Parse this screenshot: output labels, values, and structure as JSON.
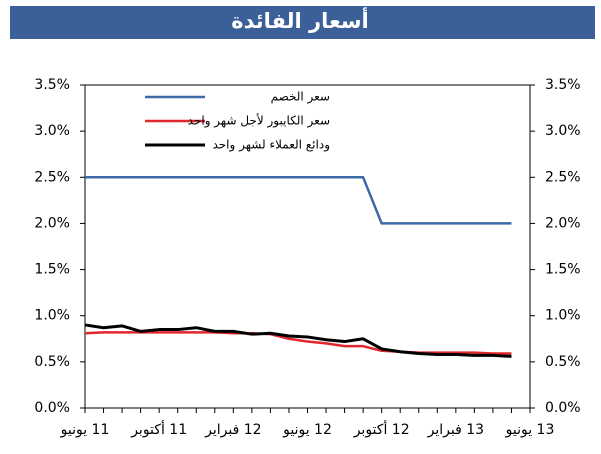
{
  "chart_data": {
    "type": "line",
    "title": "أسعار الفائدة",
    "categories": [
      "11 يونيو",
      null,
      null,
      null,
      "11 أكتوبر",
      null,
      null,
      null,
      "12 فبراير",
      null,
      null,
      null,
      "12 يونيو",
      null,
      null,
      null,
      "12 أكتوبر",
      null,
      null,
      null,
      "13 فبراير",
      null,
      null,
      null,
      "13 يونيو"
    ],
    "series": [
      {
        "name": "سعر الخصم",
        "color": "#3d6aa6",
        "values": [
          2.5,
          2.5,
          2.5,
          2.5,
          2.5,
          2.5,
          2.5,
          2.5,
          2.5,
          2.5,
          2.5,
          2.5,
          2.5,
          2.5,
          2.5,
          2.5,
          2.0,
          2.0,
          2.0,
          2.0,
          2.0,
          2.0,
          2.0,
          2.0,
          null
        ]
      },
      {
        "name": "سعر الكايبور لأجل شهر واحد",
        "color": "#e0272b",
        "values": [
          0.81,
          0.82,
          0.82,
          0.82,
          0.82,
          0.82,
          0.82,
          0.82,
          0.81,
          0.81,
          0.8,
          0.75,
          0.72,
          0.7,
          0.67,
          0.67,
          0.62,
          0.61,
          0.6,
          0.6,
          0.6,
          0.6,
          0.59,
          0.59,
          null
        ]
      },
      {
        "name": "ودائع العملاء لشهر واحد",
        "color": "#000000",
        "values": [
          0.9,
          0.87,
          0.89,
          0.83,
          0.85,
          0.85,
          0.87,
          0.83,
          0.83,
          0.8,
          0.81,
          0.78,
          0.77,
          0.74,
          0.72,
          0.75,
          0.64,
          0.61,
          0.59,
          0.58,
          0.58,
          0.57,
          0.57,
          0.56,
          null
        ]
      }
    ],
    "ylim": [
      0,
      3.5
    ],
    "yticks": [
      {
        "value": 0,
        "label": "0.0%"
      },
      {
        "value": 0.5,
        "label": "0.5%"
      },
      {
        "value": 1,
        "label": "1.0%"
      },
      {
        "value": 1.5,
        "label": "1.5%"
      },
      {
        "value": 2,
        "label": "2.0%"
      },
      {
        "value": 2.5,
        "label": "2.5%"
      },
      {
        "value": 3,
        "label": "3.0%"
      },
      {
        "value": 3.5,
        "label": "3.5%"
      }
    ],
    "y2lim": [
      0,
      3.5
    ],
    "y2ticks": [
      {
        "value": 0,
        "label": "0.0%"
      },
      {
        "value": 0.5,
        "label": "0.5%"
      },
      {
        "value": 1,
        "label": "1.0%"
      },
      {
        "value": 1.5,
        "label": "1.5%"
      },
      {
        "value": 2,
        "label": "2.0%"
      },
      {
        "value": 2.5,
        "label": "2.5%"
      },
      {
        "value": 3,
        "label": "3.0%"
      },
      {
        "value": 3.5,
        "label": "3.5%"
      }
    ],
    "grid": false,
    "legend": "top-left"
  }
}
